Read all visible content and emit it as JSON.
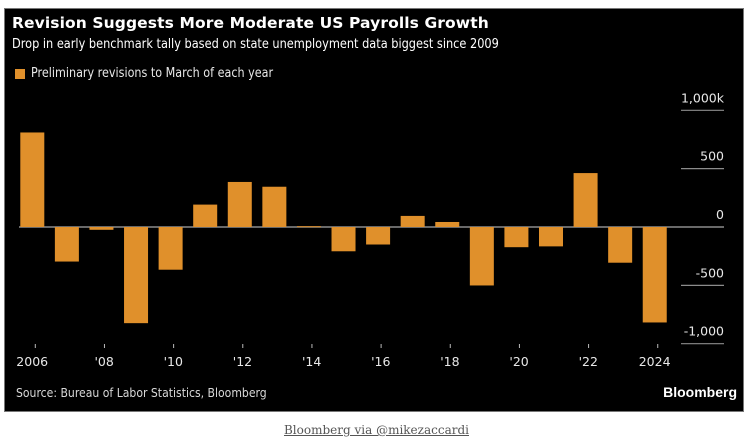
{
  "colors": {
    "bar": "#E0902B",
    "background": "#000000",
    "gridline": "#8c8c8c",
    "text": "#ffffff"
  },
  "header": {
    "title": "Revision Suggests More Moderate US Payrolls Growth",
    "subtitle": "Drop in early benchmark tally based on state unemployment data biggest since 2009"
  },
  "footer": {
    "source": "Source: Bureau of Labor Statistics, Bloomberg",
    "brand": "Bloomberg",
    "credit_link": "Bloomberg via @mikezaccardi"
  },
  "chart_data": {
    "type": "bar",
    "title": "Revision Suggests More Moderate US Payrolls Growth",
    "subtitle": "Drop in early benchmark tally based on state unemployment data biggest since 2009",
    "xlabel": "",
    "ylabel": "",
    "legend": {
      "position": "top-left",
      "entries": [
        "Preliminary revisions to March of each year"
      ]
    },
    "categories": [
      "2006",
      "2007",
      "2008",
      "2009",
      "2010",
      "2011",
      "2012",
      "2013",
      "2014",
      "2015",
      "2016",
      "2017",
      "2018",
      "2019",
      "2020",
      "2021",
      "2022",
      "2023",
      "2024"
    ],
    "series": [
      {
        "name": "Preliminary revisions to March of each year",
        "values": [
          810,
          -296,
          -24,
          -824,
          -366,
          192,
          386,
          345,
          7,
          -208,
          -150,
          95,
          43,
          -501,
          -173,
          -166,
          462,
          -306,
          -818
        ]
      }
    ],
    "ylim": [
      -1000,
      1000
    ],
    "yticks": [
      1000,
      500,
      0,
      -500,
      -1000
    ],
    "ytick_labels": [
      "1,000k",
      "500",
      "0",
      "-500",
      "-1,000"
    ],
    "xtick_positions": [
      "2006",
      "2008",
      "2010",
      "2012",
      "2014",
      "2016",
      "2018",
      "2020",
      "2022",
      "2024"
    ],
    "xtick_labels": [
      "2006",
      "'08",
      "'10",
      "'12",
      "'14",
      "'16",
      "'18",
      "'20",
      "'22",
      "2024"
    ],
    "grid": true,
    "y_axis_side": "right"
  }
}
